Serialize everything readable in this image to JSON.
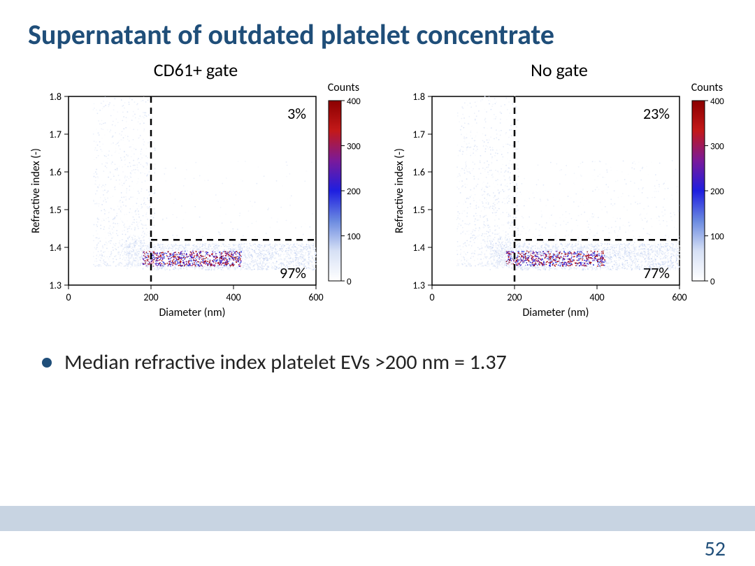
{
  "title": "Supernatant of outdated platelet concentrate",
  "bullet": "Median refractive index platelet EVs >200 nm = 1.37",
  "page_number": "52",
  "common": {
    "xlabel": "Diameter (nm)",
    "ylabel": "Refractive index (-)",
    "counts_label": "Counts",
    "xlim": [
      0,
      600
    ],
    "ylim": [
      1.3,
      1.8
    ],
    "xticks": [
      0,
      200,
      400,
      600
    ],
    "yticks": [
      1.3,
      1.4,
      1.5,
      1.6,
      1.7,
      1.8
    ],
    "gate_vline_x": 200,
    "gate_hline_y": 1.42,
    "axis_fontsize": 16,
    "tick_fontsize": 14,
    "annotation_fontsize": 22,
    "colorbar": {
      "min": 0,
      "max": 400,
      "step": 100,
      "colors": [
        "#ffffff",
        "#d6e0f5",
        "#6b8ae0",
        "#1e1ee0",
        "#7a1a9a",
        "#c31919",
        "#8b0000"
      ]
    }
  },
  "panels": [
    {
      "title": "CD61+ gate",
      "upper_pct": "3%",
      "lower_pct": "97%",
      "density_seed": 11
    },
    {
      "title": "No gate",
      "upper_pct": "23%",
      "lower_pct": "77%",
      "density_seed": 22
    }
  ],
  "colors": {
    "title": "#1f4e79",
    "footer_band": "#c8d4e2",
    "axis": "#000000",
    "gate_line": "#000000",
    "border": "#000000"
  }
}
